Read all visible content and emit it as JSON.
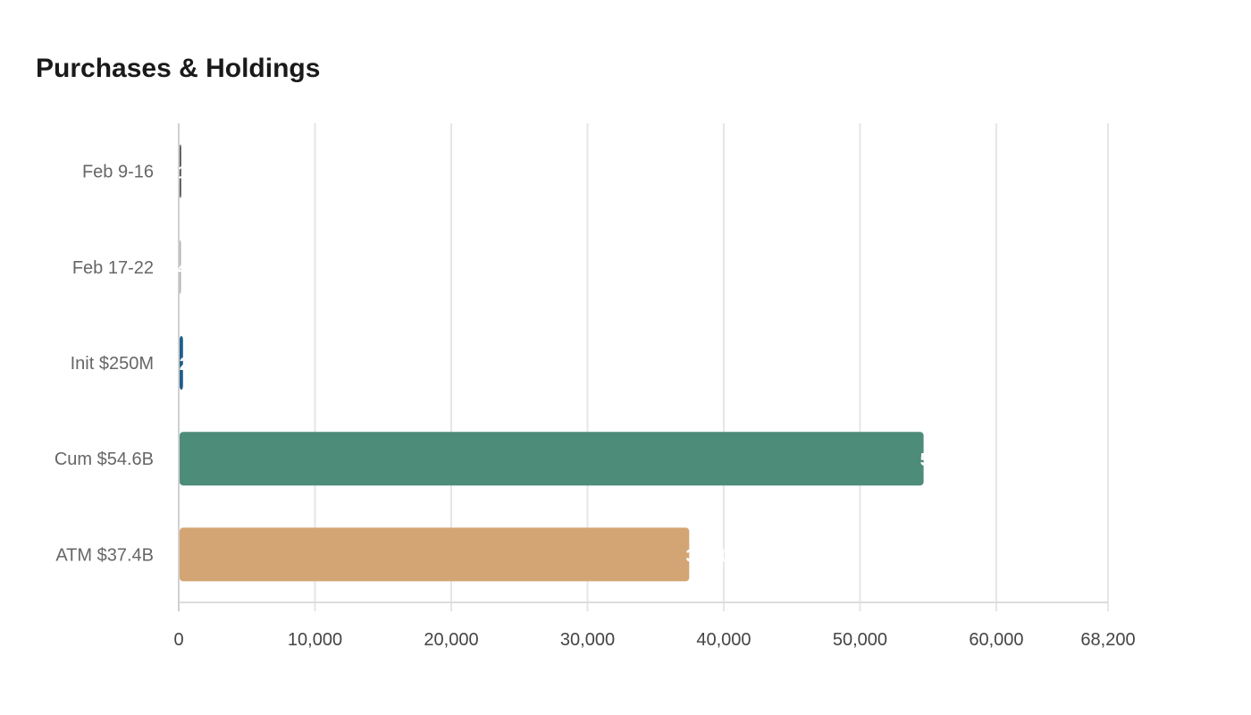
{
  "title": "Purchases & Holdings",
  "chart_data": {
    "type": "bar",
    "orientation": "horizontal",
    "title": "Purchases & Holdings",
    "categories": [
      "Feb 9-16",
      "Feb 17-22",
      "Init $250M",
      "Cum $54.6B",
      "ATM $37.4B"
    ],
    "values": [
      120,
      40,
      250,
      54600,
      37400
    ],
    "data_labels": [
      "120",
      "40",
      "250",
      "54,600",
      "37,400"
    ],
    "colors": [
      "#555555",
      "#b0b0b0",
      "#1f5f8b",
      "#4e8c7a",
      "#d4a574"
    ],
    "xlim": [
      0,
      68200
    ],
    "xticks": [
      0,
      10000,
      20000,
      30000,
      40000,
      50000,
      60000,
      68200
    ],
    "xtick_labels": [
      "0",
      "10,000",
      "20,000",
      "30,000",
      "40,000",
      "50,000",
      "60,000",
      "68,200"
    ],
    "xlabel": "",
    "ylabel": "",
    "grid": true,
    "legend": "none"
  }
}
